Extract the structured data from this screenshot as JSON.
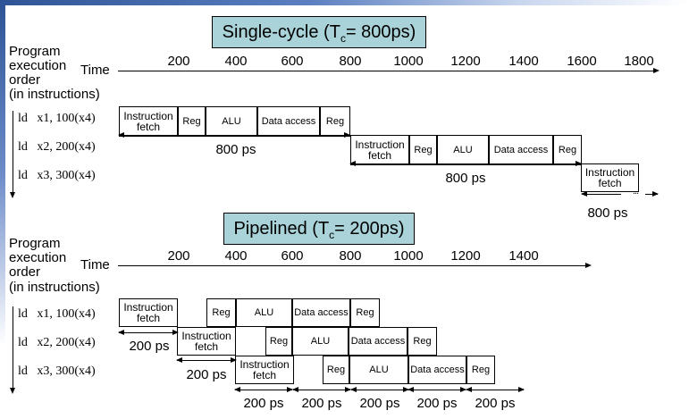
{
  "single": {
    "title_main": "Single-cycle (T",
    "title_sub": "c",
    "title_end": "= 800ps)",
    "order_label": [
      "Program",
      "execution",
      "order",
      "(in instructions)"
    ],
    "time_label": "Time",
    "ticks": [
      "200",
      "400",
      "600",
      "800",
      "1000",
      "1200",
      "1400",
      "1600",
      "1800"
    ],
    "instructions": [
      "ld   x1, 100(x4)",
      "ld   x2, 200(x4)",
      "ld   x3, 300(x4)"
    ],
    "stages": [
      "Instruction fetch",
      "Reg",
      "ALU",
      "Data access",
      "Reg"
    ],
    "duration_label": "800 ps",
    "continuation": "..."
  },
  "pipelined": {
    "title_main": "Pipelined (T",
    "title_sub": "c",
    "title_end": "= 200ps)",
    "order_label": [
      "Program",
      "execution",
      "order",
      "(in instructions)"
    ],
    "time_label": "Time",
    "ticks": [
      "200",
      "400",
      "600",
      "800",
      "1000",
      "1200",
      "1400"
    ],
    "instructions": [
      "ld   x1, 100(x4)",
      "ld   x2, 200(x4)",
      "ld   x3, 300(x4)"
    ],
    "stages": [
      "Instruction fetch",
      "Reg",
      "ALU",
      "Data access",
      "Reg"
    ],
    "duration_label": "200 ps"
  }
}
